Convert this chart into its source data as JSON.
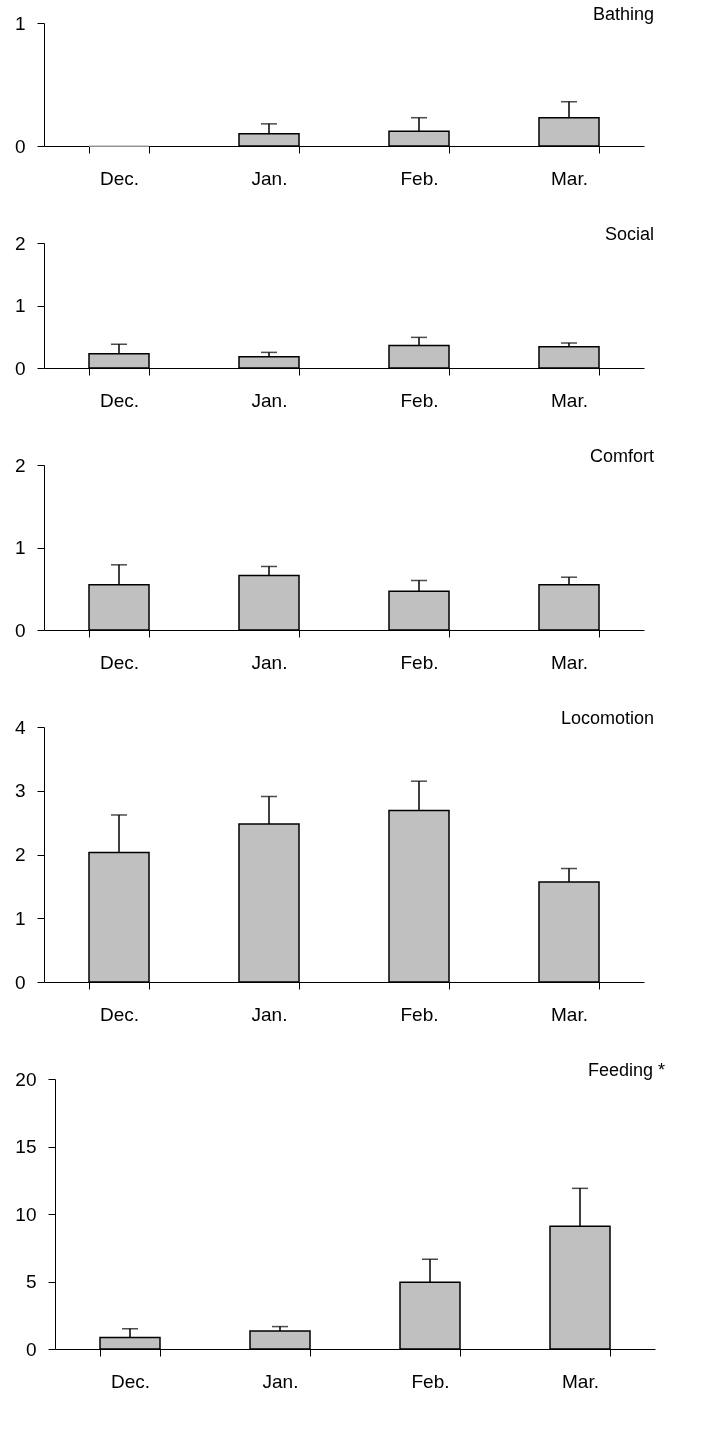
{
  "chart_data": [
    {
      "type": "bar",
      "title": "Bathing",
      "categories": [
        "Dec.",
        "Jan.",
        "Feb.",
        "Mar."
      ],
      "values": [
        0,
        0.1,
        0.12,
        0.23
      ],
      "errors": [
        null,
        [
          0.1,
          0.18
        ],
        [
          0.12,
          0.23
        ],
        [
          0.23,
          0.36
        ]
      ],
      "color": "#c0c0c0",
      "ylim": [
        0,
        1
      ],
      "yticks": [
        0,
        1
      ]
    },
    {
      "type": "bar",
      "title": "Social",
      "categories": [
        "Dec.",
        "Jan.",
        "Feb.",
        "Mar."
      ],
      "values": [
        0.23,
        0.18,
        0.36,
        0.34
      ],
      "errors": [
        [
          0.23,
          0.38
        ],
        [
          0.18,
          0.25
        ],
        [
          0.36,
          0.49
        ],
        [
          0.34,
          0.4
        ]
      ],
      "color": "#c0c0c0",
      "ylim": [
        0,
        2
      ],
      "yticks": [
        0,
        1,
        2
      ]
    },
    {
      "type": "bar",
      "title": "Comfort",
      "categories": [
        "Dec.",
        "Jan.",
        "Feb.",
        "Mar."
      ],
      "values": [
        0.55,
        0.66,
        0.47,
        0.55
      ],
      "errors": [
        [
          0.55,
          0.79
        ],
        [
          0.66,
          0.77
        ],
        [
          0.47,
          0.6
        ],
        [
          0.55,
          0.64
        ]
      ],
      "color": "#c0c0c0",
      "ylim": [
        0,
        2
      ],
      "yticks": [
        0,
        1,
        2
      ]
    },
    {
      "type": "bar",
      "title": "Locomotion",
      "categories": [
        "Dec.",
        "Jan.",
        "Feb.",
        "Mar."
      ],
      "values": [
        2.03,
        2.48,
        2.69,
        1.57
      ],
      "errors": [
        [
          2.03,
          2.62
        ],
        [
          2.48,
          2.91
        ],
        [
          2.69,
          3.15
        ],
        [
          1.57,
          1.78
        ]
      ],
      "color": "#c0c0c0",
      "ylim": [
        0,
        4
      ],
      "yticks": [
        0,
        1,
        2,
        3,
        4
      ]
    },
    {
      "type": "bar",
      "title": "Feeding *",
      "categories": [
        "Dec.",
        "Jan.",
        "Feb.",
        "Mar."
      ],
      "values": [
        0.85,
        1.33,
        4.95,
        9.1
      ],
      "errors": [
        [
          0.85,
          1.5
        ],
        [
          1.33,
          1.66
        ],
        [
          4.95,
          6.65
        ],
        [
          9.1,
          11.9
        ]
      ],
      "color": "#c0c0c0",
      "ylim": [
        0,
        20
      ],
      "yticks": [
        0,
        5,
        10,
        15,
        20
      ]
    }
  ]
}
